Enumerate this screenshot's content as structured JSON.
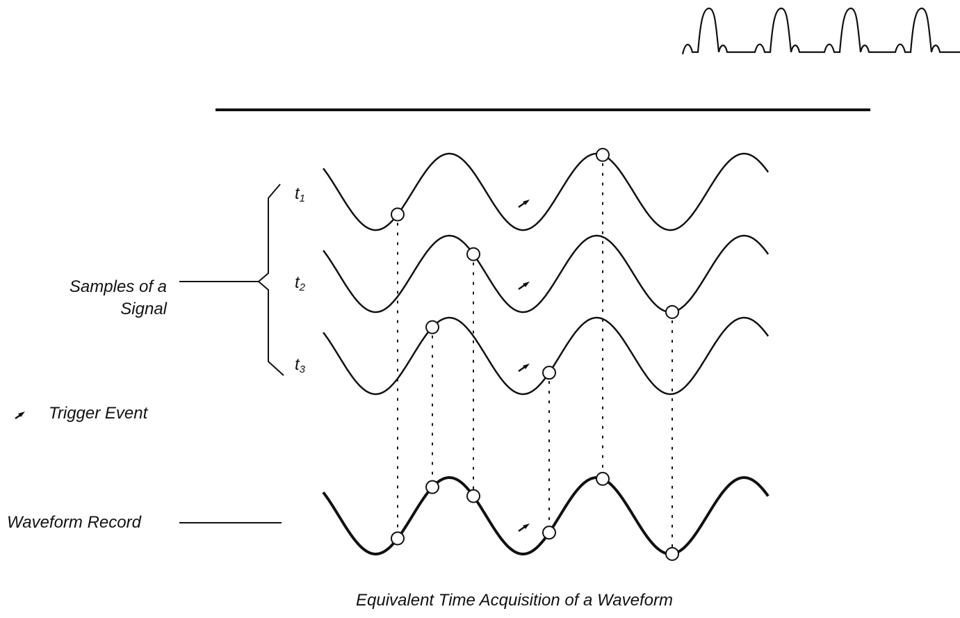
{
  "labels": {
    "samples_line1": "Samples of a",
    "samples_line2": "Signal",
    "trigger": "Trigger Event",
    "record": "Waveform Record",
    "caption": "Equivalent Time Acquisition of a Waveform"
  },
  "acquisitions": [
    {
      "t": "t",
      "sub": "1"
    },
    {
      "t": "t",
      "sub": "2"
    },
    {
      "t": "t",
      "sub": "3"
    }
  ],
  "colors": {
    "ink": "#111111",
    "background": "#ffffff"
  }
}
